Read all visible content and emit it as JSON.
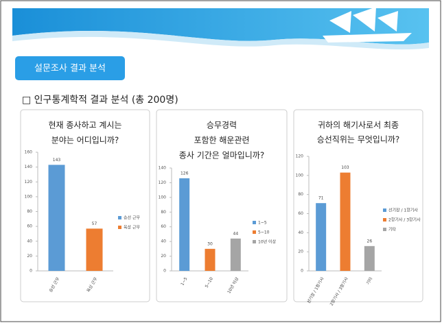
{
  "header": {
    "button": "설문조사 결과 분석",
    "subtitle": "□ 인구통계학적 결과 분석 (총 200명)"
  },
  "chart_data": [
    {
      "type": "bar",
      "title": [
        "현재 종사하고 계시는",
        "분야는 어디입니까?"
      ],
      "categories": [
        "승선 근무",
        "육상 근무"
      ],
      "values": [
        143,
        57
      ],
      "colors": [
        "#5b9bd5",
        "#ed7d31"
      ],
      "ylim": [
        0,
        160
      ],
      "yticks": [
        0,
        20,
        40,
        60,
        80,
        100,
        120,
        140,
        160
      ]
    },
    {
      "type": "bar",
      "title": [
        "승무경력",
        "포함한 해운관련",
        "종사 기간은 얼마입니까?"
      ],
      "categories": [
        "1~5",
        "5~10",
        "10년 이상"
      ],
      "values": [
        126,
        30,
        44
      ],
      "colors": [
        "#5b9bd5",
        "#ed7d31",
        "#a5a5a5"
      ],
      "ylim": [
        0,
        140
      ],
      "yticks": [
        0,
        20,
        40,
        60,
        80,
        100,
        120,
        140
      ]
    },
    {
      "type": "bar",
      "title": [
        "귀하의 해기사로서 최종",
        "승선직위는 무엇입니까?"
      ],
      "categories": [
        "선기장 / 1항기사",
        "2항기사 / 3항기사",
        "기타"
      ],
      "values": [
        71,
        103,
        26
      ],
      "colors": [
        "#5b9bd5",
        "#ed7d31",
        "#a5a5a5"
      ],
      "ylim": [
        0,
        120
      ],
      "yticks": [
        0,
        20,
        40,
        60,
        80,
        100,
        120
      ]
    }
  ]
}
